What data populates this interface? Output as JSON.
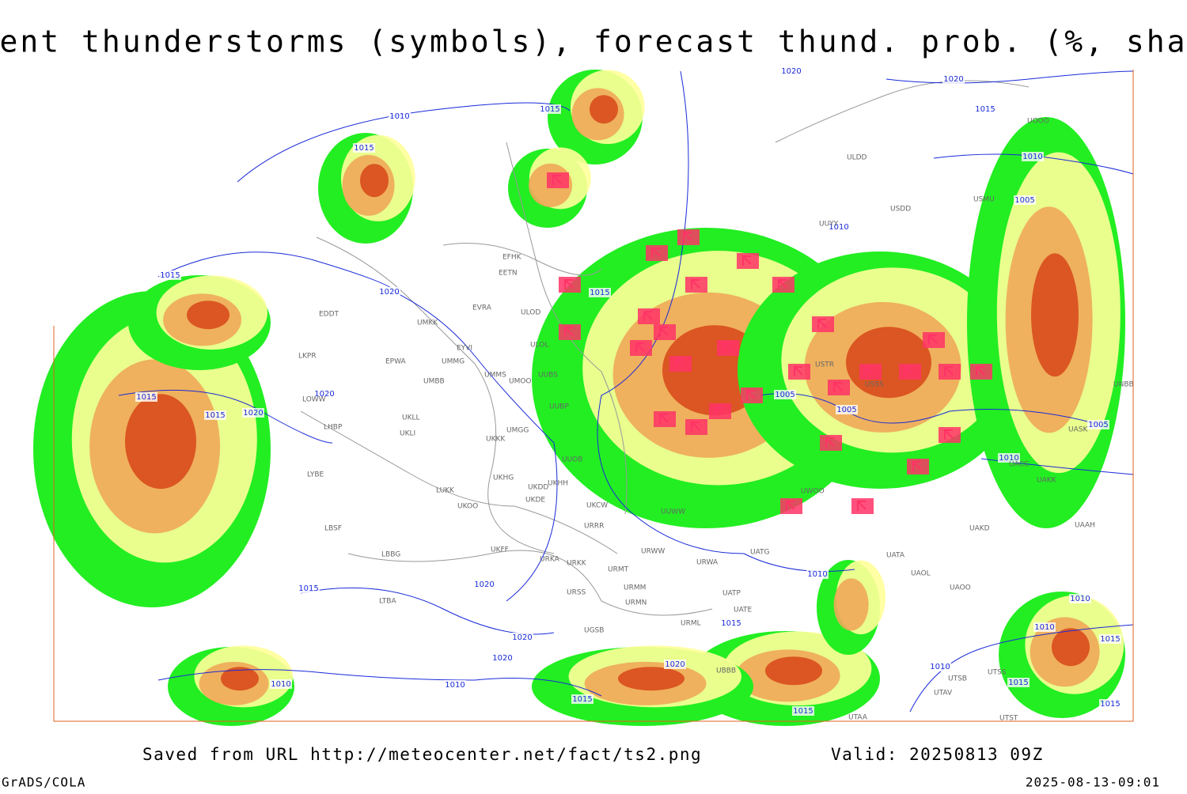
{
  "title": "Current thunderstorms (symbols), forecast thund. prob. (%, shaded)",
  "footer": {
    "source": "Saved from URL http://meteocenter.net/fact/ts2.png",
    "valid": "Valid: 20250813 09Z",
    "software": "GrADS/COLA",
    "timestamp": "2025-08-13-09:01"
  },
  "isobar_labels": [
    "1020",
    "1020",
    "1015",
    "1010",
    "1015",
    "1015",
    "1010",
    "1005",
    "1010",
    "1015",
    "1020",
    "1015",
    "1015",
    "1015",
    "1020",
    "1020",
    "1005",
    "1005",
    "1005",
    "1010",
    "1010",
    "1020",
    "1015",
    "1015",
    "1020",
    "1020",
    "1020",
    "1010",
    "1010",
    "1015",
    "1015",
    "1010",
    "1010",
    "1015",
    "1010",
    "1015",
    "1015"
  ],
  "stations": [
    "EFHK",
    "EETN",
    "EVRA",
    "ULOD",
    "ULOL",
    "UMKK",
    "EDDT",
    "EPWA",
    "UMMG",
    "EYVI",
    "LKPR",
    "UMBB",
    "UMMS",
    "UMOO",
    "UUBS",
    "LOWW",
    "UKLL",
    "UUBP",
    "UMGG",
    "UKLI",
    "LHBP",
    "UKKK",
    "UUOB",
    "LYBE",
    "UKHH",
    "UKHG",
    "UKDD",
    "LUKK",
    "UKDE",
    "UKOO",
    "UKCW",
    "LBSF",
    "URRR",
    "UKFF",
    "LBBG",
    "URKA",
    "URKK",
    "URWW",
    "URMT",
    "UATG",
    "URWA",
    "URSS",
    "URMM",
    "URMN",
    "UATP",
    "UATE",
    "URML",
    "LTBA",
    "UGSB",
    "UBBB",
    "UTAA",
    "UTSB",
    "UTAV",
    "UTSS",
    "UTST",
    "UATA",
    "UAOL",
    "UAOO",
    "UAKD",
    "UAAH",
    "UAKK",
    "UACC",
    "UASK",
    "UNBB",
    "ULDD",
    "USDD",
    "USMU",
    "UUYY",
    "UOOO",
    "USSS",
    "USTR",
    "UWOO",
    "UUWW"
  ]
}
